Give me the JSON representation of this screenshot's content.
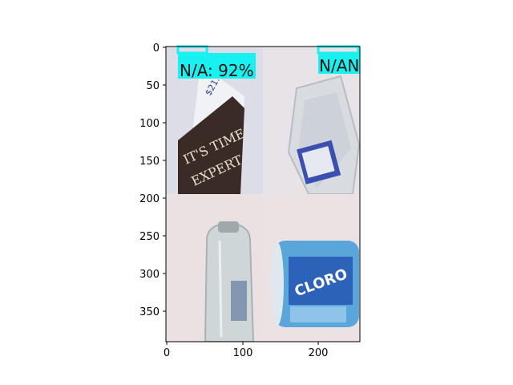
{
  "figure": {
    "x_ticks": [
      "0",
      "100",
      "200"
    ],
    "y_ticks": [
      "0",
      "50",
      "100",
      "150",
      "200",
      "250",
      "300",
      "350"
    ],
    "x_range": [
      0,
      256
    ],
    "y_range": [
      392,
      0
    ]
  },
  "tiles": [
    {
      "id": "top-left",
      "content": "book cover photo"
    },
    {
      "id": "top-right",
      "content": "clear plastic container photo"
    },
    {
      "id": "bottom-left",
      "content": "clear plastic bottle photo"
    },
    {
      "id": "bottom-right",
      "content": "disinfecting wipes canister photo"
    }
  ],
  "detections": [
    {
      "label": "N/A: 92%"
    },
    {
      "label": "N/AN"
    }
  ],
  "colors": {
    "detection_box": "#19f0f0",
    "background": "#ffffff"
  }
}
